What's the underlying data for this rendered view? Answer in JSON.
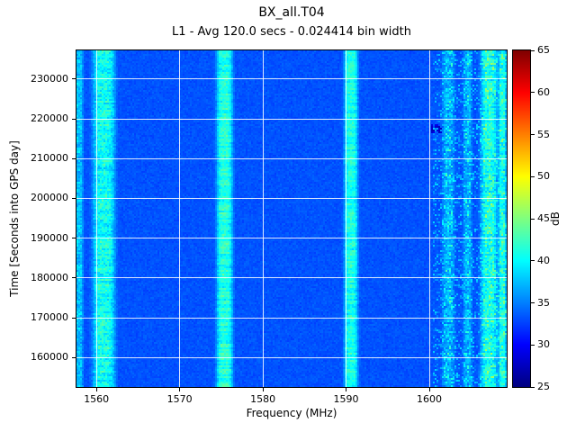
{
  "chart_data": {
    "type": "heatmap",
    "title": "BX_all.T04",
    "subtitle": "L1 - Avg 120.0 secs - 0.024414 bin width",
    "xlabel": "Frequency (MHz)",
    "ylabel": "Time [Seconds into GPS day]",
    "colorbar_label": "dB",
    "colormap": "jet",
    "xlim": [
      1557.6,
      1609.3
    ],
    "ylim": [
      152600,
      237200
    ],
    "clim": [
      25,
      65
    ],
    "xticks": [
      1560,
      1570,
      1580,
      1590,
      1600
    ],
    "yticks": [
      160000,
      170000,
      180000,
      190000,
      200000,
      210000,
      220000,
      230000
    ],
    "colorbar_ticks": [
      25,
      30,
      35,
      40,
      45,
      50,
      55,
      60,
      65
    ],
    "grid": true,
    "grid_color": "#ffffff",
    "background_db": 33.2,
    "noise_db": 0.9,
    "bands": [
      {
        "center_mhz": 1557.9,
        "width_mhz": 1.0,
        "peak_db": 4.0,
        "speckle_db": 3.0
      },
      {
        "center_mhz": 1560.9,
        "width_mhz": 2.6,
        "peak_db": 7.0,
        "speckle_db": 4.0
      },
      {
        "center_mhz": 1575.4,
        "width_mhz": 1.9,
        "peak_db": 8.0,
        "speckle_db": 2.5
      },
      {
        "center_mhz": 1590.6,
        "width_mhz": 1.6,
        "peak_db": 7.5,
        "speckle_db": 2.5
      },
      {
        "center_mhz": 1602.3,
        "width_mhz": 1.4,
        "peak_db": 3.0,
        "speckle_db": 3.5
      },
      {
        "center_mhz": 1604.6,
        "width_mhz": 1.0,
        "peak_db": 3.0,
        "speckle_db": 3.5
      },
      {
        "center_mhz": 1607.2,
        "width_mhz": 2.0,
        "peak_db": 7.0,
        "speckle_db": 4.0
      },
      {
        "center_mhz": 1608.8,
        "width_mhz": 0.9,
        "peak_db": 7.0,
        "speckle_db": 3.0
      }
    ],
    "speckle_region": {
      "from_mhz": 1600.5,
      "to_mhz": 1609.3,
      "extra_db": 2.0
    },
    "anomaly_spots": [
      {
        "x_mhz": 1600.9,
        "y_sec": 217500,
        "w_mhz": 1.2,
        "h_sec": 2600,
        "value_db": 27.0
      }
    ]
  }
}
